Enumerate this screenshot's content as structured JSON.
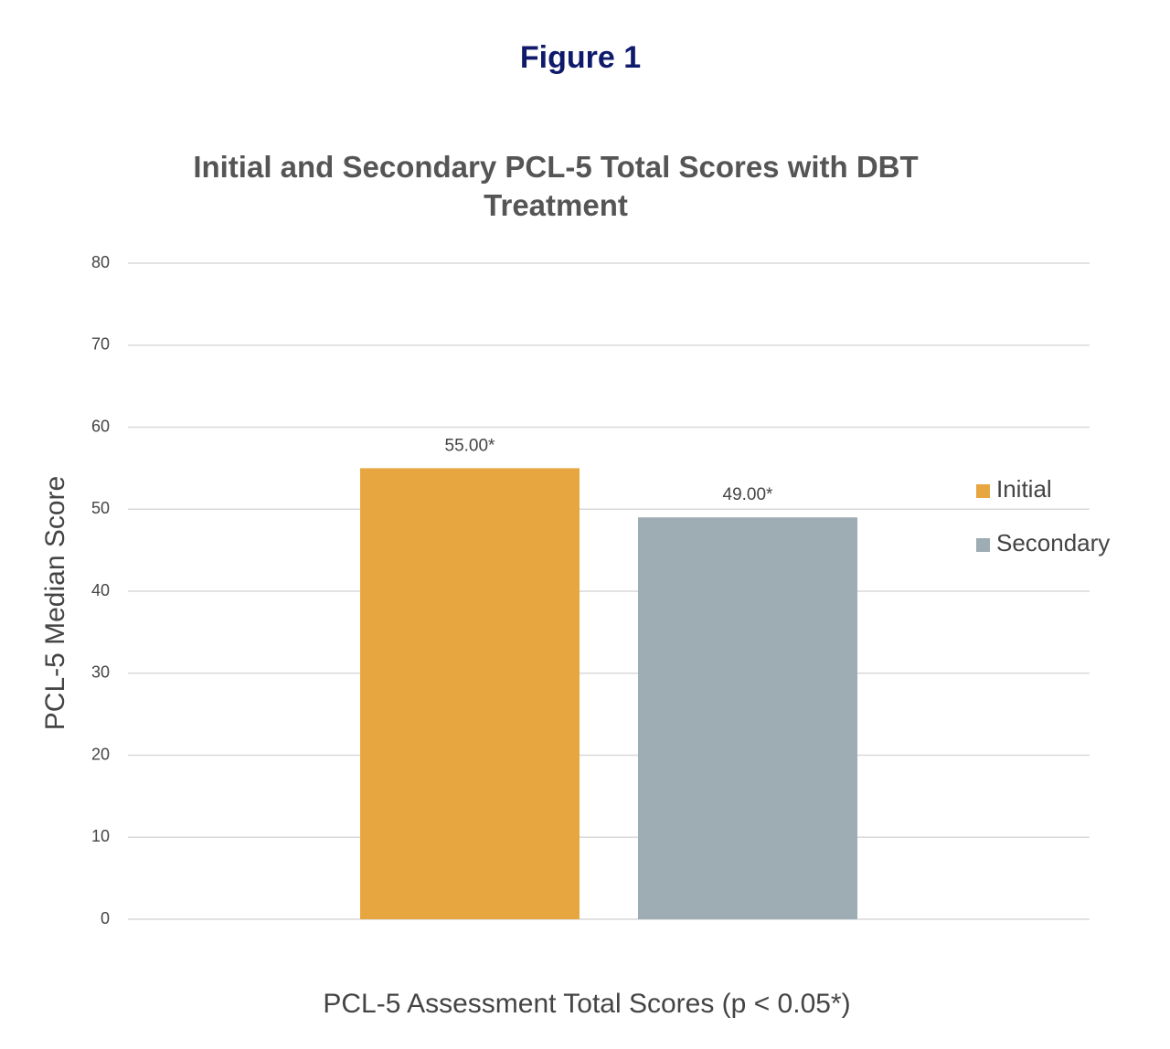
{
  "header": "Figure 1",
  "chart_data": {
    "type": "bar",
    "title": "Initial and Secondary PCL-5 Total Scores with DBT Treatment",
    "x_label": "PCL-5 Assessment Total Scores (p < 0.05*)",
    "y_label": "PCL-5 Median Score",
    "categories": [
      null
    ],
    "series": [
      {
        "name": "Initial",
        "color": "#e8a640",
        "values": [
          55
        ],
        "value_labels": [
          "55.00*"
        ]
      },
      {
        "name": "Secondary",
        "color": "#9eacb3",
        "values": [
          49
        ],
        "value_labels": [
          "49.00*"
        ]
      }
    ],
    "ylim": [
      0,
      80
    ],
    "yticks": [
      0,
      10,
      20,
      30,
      40,
      50,
      60,
      70,
      80
    ],
    "grid": true,
    "legend": "right"
  }
}
